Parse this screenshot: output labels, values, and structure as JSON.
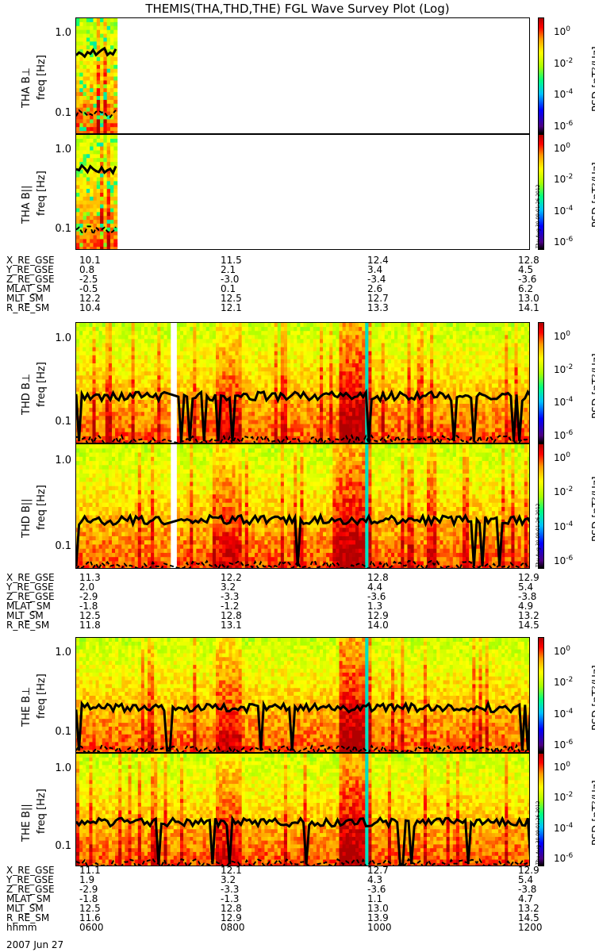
{
  "title": "THEMIS(THA,THD,THE) FGL Wave Survey Plot (Log)",
  "freq_label": "freq [Hz]",
  "yticks": [
    "1.0",
    "0.1"
  ],
  "cbar_ticks": [
    "10",
    "10",
    "10",
    "10"
  ],
  "cbar_exps": [
    "0",
    "-2",
    "-4",
    "-6"
  ],
  "cbar_label": "PSD [nT²/Hz]",
  "colors": {
    "low": "#000000",
    "mid": "#ffff00",
    "high": "#ff0000"
  },
  "stamp": "Thu Aug 30 09:01:26 2012",
  "panels": [
    {
      "name": "THA B⊥"
    },
    {
      "name": "THA B||"
    },
    {
      "name": "THD B⊥"
    },
    {
      "name": "THD B||"
    },
    {
      "name": "THE B⊥"
    },
    {
      "name": "THE B||"
    }
  ],
  "ephem": [
    {
      "rows": [
        [
          "X_RE_GSE",
          "10.1",
          "11.5",
          "12.4",
          "12.8"
        ],
        [
          "Y_RE_GSE",
          " 0.8",
          "2.1",
          "3.4",
          "4.5"
        ],
        [
          "Z_RE_GSE",
          "-2.5",
          "-3.0",
          "-3.4",
          "-3.6"
        ],
        [
          "MLAT_SM",
          "-0.5",
          "0.1",
          "2.6",
          "6.2"
        ],
        [
          "MLT_SM",
          "12.2",
          "12.5",
          "12.7",
          "13.0"
        ],
        [
          "R_RE_SM",
          "10.4",
          "12.1",
          "13.3",
          "14.1"
        ]
      ]
    },
    {
      "rows": [
        [
          "X_RE_GSE",
          "11.3",
          "12.2",
          "12.8",
          "12.9"
        ],
        [
          "Y_RE_GSE",
          " 2.0",
          "3.2",
          "4.4",
          "5.4"
        ],
        [
          "Z_RE_GSE",
          "-2.9",
          "-3.3",
          "-3.6",
          "-3.8"
        ],
        [
          "MLAT_SM",
          "-1.8",
          "-1.2",
          "1.3",
          "4.9"
        ],
        [
          "MLT_SM",
          "12.5",
          "12.8",
          "12.9",
          "13.2"
        ],
        [
          "R_RE_SM",
          "11.8",
          "13.1",
          "14.0",
          "14.5"
        ]
      ]
    },
    {
      "rows": [
        [
          "X_RE_GSE",
          "11.1",
          "12.1",
          "12.7",
          "12.9"
        ],
        [
          "Y_RE_GSE",
          " 1.9",
          "3.2",
          "4.3",
          "5.4"
        ],
        [
          "Z_RE_GSE",
          "-2.9",
          "-3.3",
          "-3.6",
          "-3.8"
        ],
        [
          "MLAT_SM",
          "-1.8",
          "-1.3",
          "1.1",
          "4.7"
        ],
        [
          "MLT_SM",
          "12.5",
          "12.8",
          "13.0",
          "13.2"
        ],
        [
          "R_RE_SM",
          "11.6",
          "12.9",
          "13.9",
          "14.5"
        ],
        [
          "hhmm",
          "0600",
          "0800",
          "1000",
          "1200"
        ]
      ]
    }
  ],
  "date": "2007 Jun 27",
  "chart_data": {
    "type": "heatmap",
    "title": "THEMIS(THA,THD,THE) FGL Wave Survey Plot (Log)",
    "xlabel": "hhmm",
    "x_ticks": [
      "0600",
      "0800",
      "1000",
      "1200"
    ],
    "ylabel": "freq [Hz]",
    "yscale": "log",
    "ylim": [
      0.055,
      1.6
    ],
    "zlabel": "PSD [nT²/Hz]",
    "zscale": "log",
    "zlim": [
      1e-06,
      10
    ],
    "panels": [
      "THA B⊥",
      "THA B||",
      "THD B⊥",
      "THD B||",
      "THE B⊥",
      "THE B||"
    ]
  }
}
